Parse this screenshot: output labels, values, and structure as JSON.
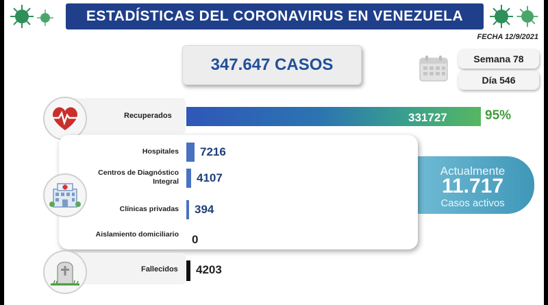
{
  "header": {
    "title": "ESTADÍSTICAS DEL CORONAVIRUS EN VENEZUELA",
    "date": "FECHA 12/9/2021",
    "colors": {
      "band": "#1f3f8a",
      "virus": "#2e8f5a"
    }
  },
  "total": {
    "label": "347.647 CASOS"
  },
  "period": {
    "week": "Semana 78",
    "day": "Día 546",
    "icon": "calendar-icon"
  },
  "recovered": {
    "label": "Recuperados",
    "value": "331727",
    "percent": "95%",
    "icon": "heart-pulse-icon"
  },
  "hospitalized": {
    "icon": "hospital-icon",
    "items": [
      {
        "label": "Hospitales",
        "value": "7216",
        "count": 7216
      },
      {
        "label": "Centros de Diagnóstico Integral",
        "value": "4107",
        "count": 4107
      },
      {
        "label": "Clínicas privadas",
        "value": "394",
        "count": 394
      },
      {
        "label": "Aislamiento domiciliario",
        "value": "0",
        "count": 0
      }
    ]
  },
  "active": {
    "label_top": "Actualmente",
    "value": "11.717",
    "label_bottom": "Casos activos"
  },
  "deceased": {
    "label": "Fallecidos",
    "value": "4203",
    "icon": "tombstone-icon"
  }
}
